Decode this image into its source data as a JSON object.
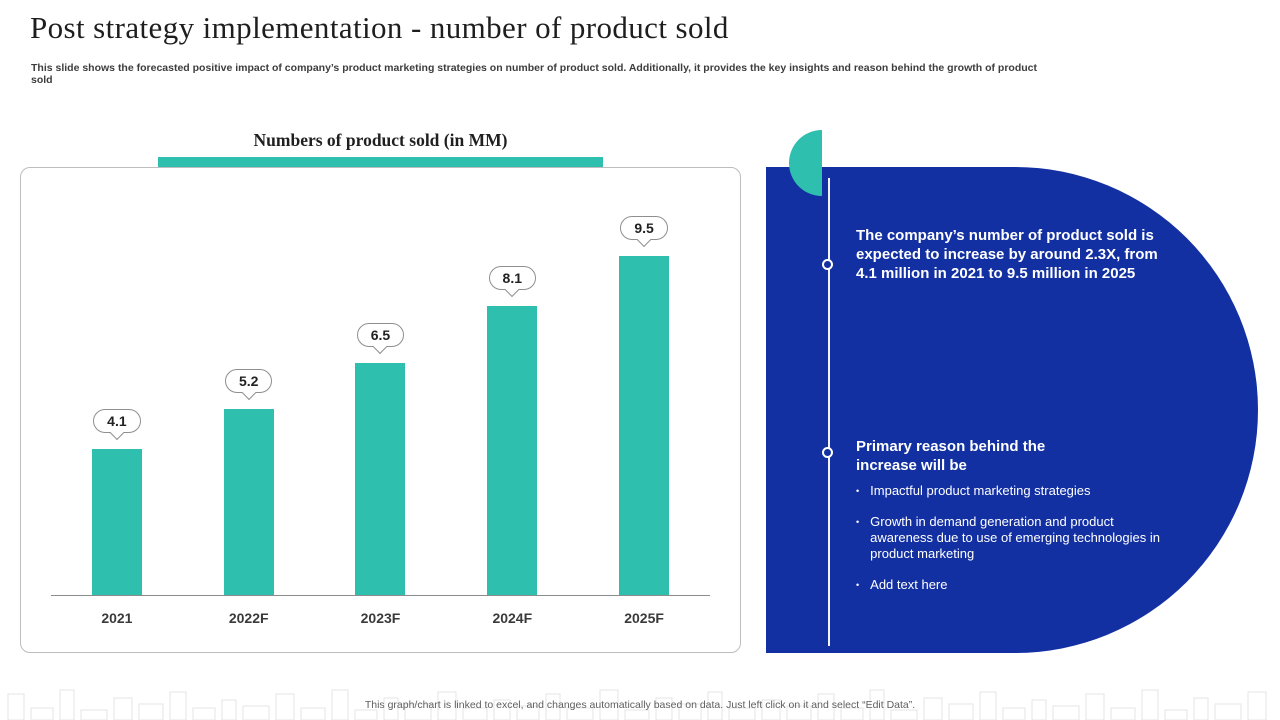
{
  "slide": {
    "title": "Post strategy implementation - number of product sold",
    "subtitle": "This slide shows the forecasted positive impact of company’s product marketing strategies on number of product sold. Additionally, it provides the key insights and reason behind the growth of product sold",
    "footer": "This graph/chart is linked to excel, and changes automatically based on data. Just left click on it and select “Edit Data”."
  },
  "chart_data": {
    "type": "bar",
    "title": "Numbers of product sold (in MM)",
    "categories": [
      "2021",
      "2022F",
      "2023F",
      "2024F",
      "2025F"
    ],
    "values": [
      4.1,
      5.2,
      6.5,
      8.1,
      9.5
    ],
    "data_labels": [
      "4.1",
      "5.2",
      "6.5",
      "8.1",
      "9.5"
    ],
    "xlabel": "",
    "ylabel": "",
    "ylim": [
      0,
      10
    ],
    "grid": false,
    "legend": "none",
    "bar_color": "#2fbfae"
  },
  "insights": {
    "summary": "The company’s number of product sold is expected to increase by around 2.3X, from 4.1 million in 2021 to 9.5 million in 2025",
    "reason_heading": "Primary reason behind the increase will be",
    "bullets": [
      "Impactful product marketing strategies",
      "Growth in demand generation and product awareness due to use of emerging technologies in product marketing",
      "Add text here"
    ],
    "panel_color": "#1330a2",
    "accent_color": "#2fbfae"
  }
}
